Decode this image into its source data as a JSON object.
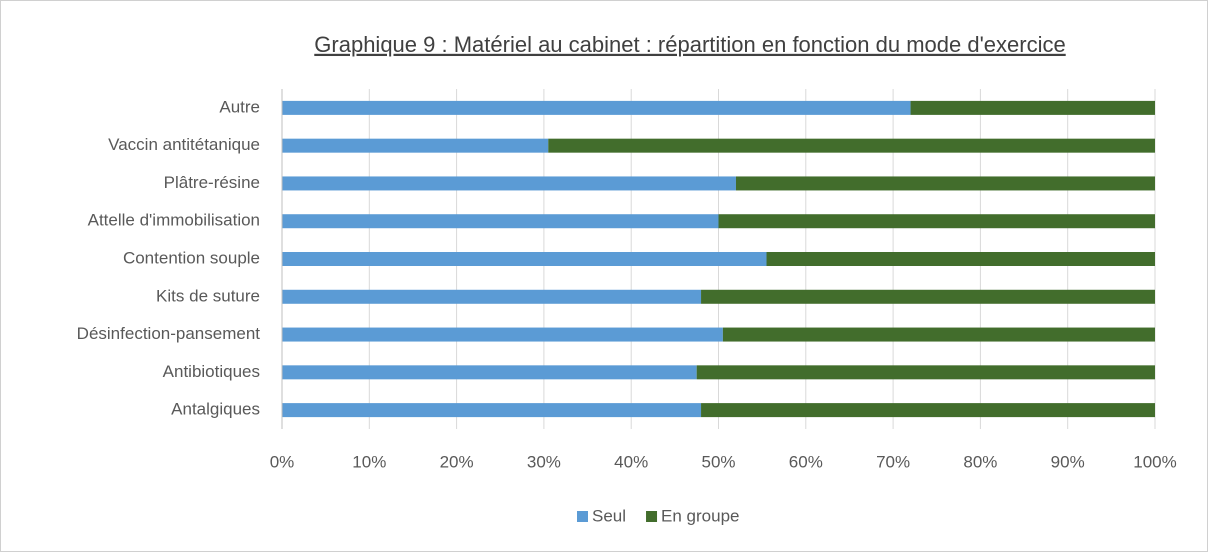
{
  "chart_data": {
    "type": "stacked-barh",
    "title": "Graphique 9 : Matériel au cabinet : répartition en fonction du mode d'exercice",
    "categories": [
      "Autre",
      "Vaccin antitétanique",
      "Plâtre-résine",
      "Attelle d'immobilisation",
      "Contention souple",
      "Kits de suture",
      "Désinfection-pansement",
      "Antibiotiques",
      "Antalgiques"
    ],
    "series": [
      {
        "name": "Seul",
        "color": "#5b9bd5",
        "values": [
          72,
          30.5,
          52,
          50,
          55.5,
          48,
          50.5,
          47.5,
          48
        ]
      },
      {
        "name": "En groupe",
        "color": "#426d2c",
        "values": [
          28,
          69.5,
          48,
          50,
          44.5,
          52,
          49.5,
          52.5,
          52
        ]
      }
    ],
    "xlim": [
      0,
      100
    ],
    "xticks": [
      {
        "value": 0,
        "label": "0%"
      },
      {
        "value": 10,
        "label": "10%"
      },
      {
        "value": 20,
        "label": "20%"
      },
      {
        "value": 30,
        "label": "30%"
      },
      {
        "value": 40,
        "label": "40%"
      },
      {
        "value": 50,
        "label": "50%"
      },
      {
        "value": 60,
        "label": "60%"
      },
      {
        "value": 70,
        "label": "70%"
      },
      {
        "value": 80,
        "label": "80%"
      },
      {
        "value": 90,
        "label": "90%"
      },
      {
        "value": 100,
        "label": "100%"
      }
    ],
    "grid": true,
    "legend": "bottom"
  }
}
